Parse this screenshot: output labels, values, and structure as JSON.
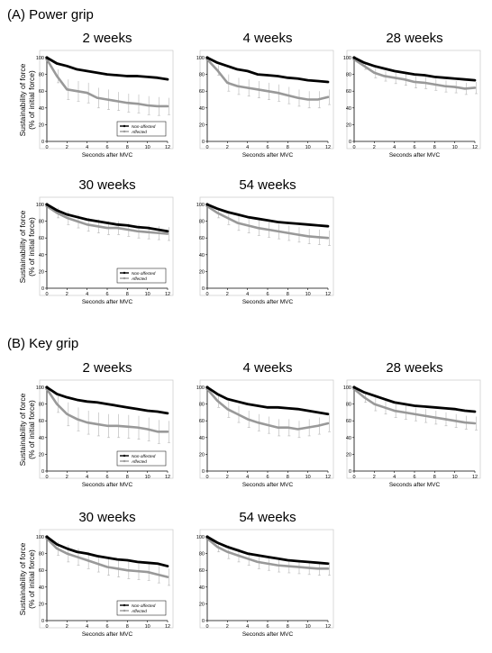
{
  "sections": [
    {
      "label": "(A) Power grip"
    },
    {
      "label": "(B) Key grip"
    }
  ],
  "common": {
    "ylabel_line1": "Sustainability of force",
    "ylabel_line2": "(% of initial force)",
    "xlabel": "Seconds after MVC",
    "legend_non": "Non-affected",
    "legend_aff": "Affected",
    "colors": {
      "non_affected": "#000000",
      "affected": "#999999"
    }
  },
  "chart_data": [
    {
      "type": "line",
      "section": "(A) Power grip",
      "title": "2 weeks",
      "xlabel": "Seconds after MVC",
      "ylabel": "Sustainability of force (% of initial force)",
      "xlim": [
        0,
        12
      ],
      "ylim": [
        0,
        100
      ],
      "x": [
        0,
        1,
        2,
        3,
        4,
        5,
        6,
        7,
        8,
        9,
        10,
        11,
        12
      ],
      "series": [
        {
          "name": "Non-affected",
          "values": [
            100,
            93,
            90,
            86,
            84,
            82,
            80,
            79,
            78,
            78,
            77,
            76,
            74
          ]
        },
        {
          "name": "Affected",
          "values": [
            98,
            78,
            62,
            60,
            58,
            52,
            50,
            48,
            46,
            45,
            43,
            42,
            42
          ],
          "error": [
            0,
            8,
            12,
            12,
            12,
            12,
            12,
            11,
            11,
            11,
            11,
            11,
            10
          ]
        }
      ]
    },
    {
      "type": "line",
      "section": "(A) Power grip",
      "title": "4 weeks",
      "xlabel": "Seconds after MVC",
      "ylabel": "",
      "xlim": [
        0,
        12
      ],
      "ylim": [
        0,
        100
      ],
      "x": [
        0,
        1,
        2,
        3,
        4,
        5,
        6,
        7,
        8,
        9,
        10,
        11,
        12
      ],
      "series": [
        {
          "name": "Non-affected",
          "values": [
            100,
            94,
            90,
            86,
            84,
            80,
            79,
            78,
            76,
            75,
            73,
            72,
            71
          ]
        },
        {
          "name": "Affected",
          "values": [
            98,
            85,
            70,
            66,
            64,
            62,
            60,
            58,
            55,
            52,
            50,
            50,
            53
          ],
          "error": [
            0,
            6,
            10,
            10,
            10,
            10,
            10,
            10,
            10,
            10,
            10,
            10,
            9
          ]
        }
      ]
    },
    {
      "type": "line",
      "section": "(A) Power grip",
      "title": "28 weeks",
      "xlabel": "Seconds after MVC",
      "ylabel": "",
      "xlim": [
        0,
        12
      ],
      "ylim": [
        0,
        100
      ],
      "x": [
        0,
        1,
        2,
        3,
        4,
        5,
        6,
        7,
        8,
        9,
        10,
        11,
        12
      ],
      "series": [
        {
          "name": "Non-affected",
          "values": [
            100,
            94,
            90,
            87,
            84,
            82,
            80,
            79,
            77,
            76,
            75,
            74,
            73
          ]
        },
        {
          "name": "Affected",
          "values": [
            98,
            90,
            82,
            78,
            76,
            74,
            71,
            70,
            68,
            66,
            65,
            63,
            64
          ],
          "error": [
            0,
            4,
            6,
            6,
            7,
            7,
            7,
            7,
            7,
            7,
            7,
            7,
            7
          ]
        }
      ]
    },
    {
      "type": "line",
      "section": "(A) Power grip",
      "title": "30 weeks",
      "xlabel": "Seconds after MVC",
      "ylabel": "",
      "xlim": [
        0,
        12
      ],
      "ylim": [
        0,
        100
      ],
      "x": [
        0,
        1,
        2,
        3,
        4,
        5,
        6,
        7,
        8,
        9,
        10,
        11,
        12
      ],
      "series": [
        {
          "name": "Non-affected",
          "values": [
            100,
            93,
            88,
            85,
            82,
            80,
            78,
            76,
            75,
            73,
            72,
            70,
            68
          ]
        },
        {
          "name": "Affected",
          "values": [
            98,
            90,
            84,
            80,
            76,
            74,
            72,
            72,
            70,
            68,
            67,
            66,
            65
          ],
          "error": [
            0,
            6,
            8,
            8,
            8,
            8,
            8,
            8,
            8,
            8,
            8,
            8,
            8
          ]
        }
      ]
    },
    {
      "type": "line",
      "section": "(A) Power grip",
      "title": "54 weeks",
      "xlabel": "Seconds after MVC",
      "ylabel": "",
      "xlim": [
        0,
        12
      ],
      "ylim": [
        0,
        100
      ],
      "x": [
        0,
        1,
        2,
        3,
        4,
        5,
        6,
        7,
        8,
        9,
        10,
        11,
        12
      ],
      "series": [
        {
          "name": "Non-affected",
          "values": [
            100,
            95,
            91,
            88,
            85,
            83,
            81,
            79,
            78,
            77,
            76,
            75,
            74
          ]
        },
        {
          "name": "Affected",
          "values": [
            98,
            90,
            84,
            78,
            75,
            72,
            70,
            68,
            66,
            64,
            62,
            61,
            60
          ],
          "error": [
            0,
            6,
            8,
            9,
            9,
            9,
            9,
            9,
            9,
            9,
            9,
            9,
            9
          ]
        }
      ]
    },
    {
      "type": "line",
      "section": "(B) Key grip",
      "title": "2 weeks",
      "xlabel": "Seconds after MVC",
      "ylabel": "Sustainability of force (% of initial force)",
      "xlim": [
        0,
        12
      ],
      "ylim": [
        0,
        100
      ],
      "x": [
        0,
        1,
        2,
        3,
        4,
        5,
        6,
        7,
        8,
        9,
        10,
        11,
        12
      ],
      "series": [
        {
          "name": "Non-affected",
          "values": [
            100,
            92,
            88,
            85,
            83,
            82,
            80,
            78,
            76,
            74,
            72,
            71,
            69
          ]
        },
        {
          "name": "Affected",
          "values": [
            98,
            80,
            68,
            62,
            58,
            56,
            54,
            54,
            53,
            52,
            50,
            47,
            47
          ],
          "error": [
            0,
            10,
            14,
            14,
            14,
            14,
            14,
            14,
            14,
            14,
            14,
            14,
            13
          ]
        }
      ]
    },
    {
      "type": "line",
      "section": "(B) Key grip",
      "title": "4 weeks",
      "xlabel": "Seconds after MVC",
      "ylabel": "",
      "xlim": [
        0,
        12
      ],
      "ylim": [
        0,
        100
      ],
      "x": [
        0,
        1,
        2,
        3,
        4,
        5,
        6,
        7,
        8,
        9,
        10,
        11,
        12
      ],
      "series": [
        {
          "name": "Non-affected",
          "values": [
            100,
            92,
            86,
            83,
            80,
            78,
            76,
            76,
            75,
            74,
            72,
            70,
            68
          ]
        },
        {
          "name": "Affected",
          "values": [
            98,
            84,
            74,
            68,
            62,
            58,
            55,
            52,
            52,
            50,
            52,
            54,
            57
          ],
          "error": [
            0,
            8,
            10,
            10,
            10,
            10,
            10,
            10,
            10,
            10,
            10,
            10,
            10
          ]
        }
      ]
    },
    {
      "type": "line",
      "section": "(B) Key grip",
      "title": "28 weeks",
      "xlabel": "Seconds after MVC",
      "ylabel": "",
      "xlim": [
        0,
        12
      ],
      "ylim": [
        0,
        100
      ],
      "x": [
        0,
        1,
        2,
        3,
        4,
        5,
        6,
        7,
        8,
        9,
        10,
        11,
        12
      ],
      "series": [
        {
          "name": "Non-affected",
          "values": [
            100,
            94,
            90,
            86,
            82,
            80,
            78,
            77,
            76,
            75,
            74,
            72,
            71
          ]
        },
        {
          "name": "Affected",
          "values": [
            98,
            88,
            80,
            76,
            72,
            70,
            68,
            66,
            64,
            62,
            60,
            58,
            57
          ],
          "error": [
            0,
            6,
            8,
            8,
            8,
            8,
            8,
            8,
            8,
            8,
            8,
            8,
            8
          ]
        }
      ]
    },
    {
      "type": "line",
      "section": "(B) Key grip",
      "title": "30 weeks",
      "xlabel": "Seconds after MVC",
      "ylabel": "",
      "xlim": [
        0,
        12
      ],
      "ylim": [
        0,
        100
      ],
      "x": [
        0,
        1,
        2,
        3,
        4,
        5,
        6,
        7,
        8,
        9,
        10,
        11,
        12
      ],
      "series": [
        {
          "name": "Non-affected",
          "values": [
            100,
            91,
            86,
            82,
            80,
            77,
            75,
            73,
            72,
            70,
            69,
            68,
            65
          ]
        },
        {
          "name": "Affected",
          "values": [
            98,
            86,
            80,
            76,
            72,
            68,
            64,
            62,
            60,
            59,
            58,
            55,
            52
          ],
          "error": [
            0,
            8,
            10,
            10,
            10,
            10,
            10,
            10,
            10,
            10,
            10,
            10,
            10
          ]
        }
      ]
    },
    {
      "type": "line",
      "section": "(B) Key grip",
      "title": "54 weeks",
      "xlabel": "Seconds after MVC",
      "ylabel": "",
      "xlim": [
        0,
        12
      ],
      "ylim": [
        0,
        100
      ],
      "x": [
        0,
        1,
        2,
        3,
        4,
        5,
        6,
        7,
        8,
        9,
        10,
        11,
        12
      ],
      "series": [
        {
          "name": "Non-affected",
          "values": [
            100,
            93,
            88,
            84,
            80,
            78,
            76,
            74,
            72,
            71,
            70,
            69,
            68
          ]
        },
        {
          "name": "Affected",
          "values": [
            98,
            88,
            82,
            78,
            74,
            70,
            68,
            66,
            65,
            64,
            63,
            62,
            62
          ],
          "error": [
            0,
            6,
            8,
            8,
            8,
            8,
            8,
            8,
            8,
            8,
            8,
            8,
            8
          ]
        }
      ]
    }
  ]
}
